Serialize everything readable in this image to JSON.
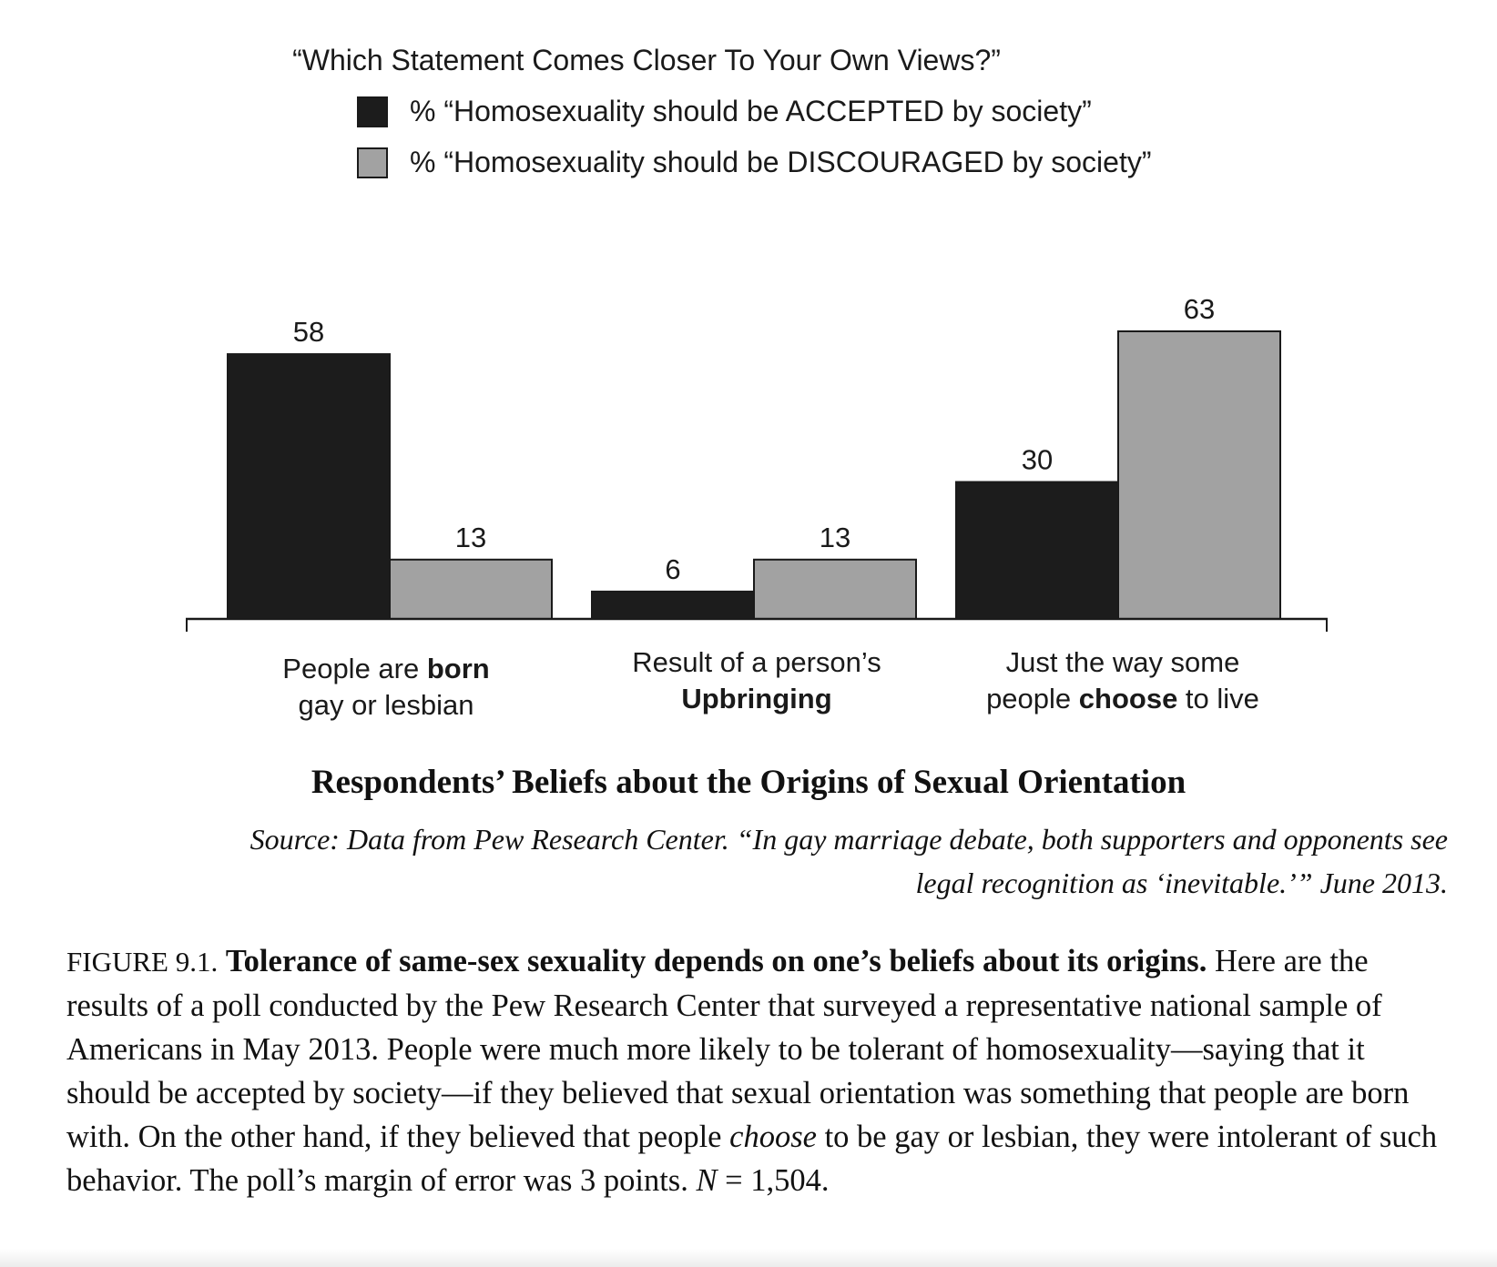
{
  "chart_data": {
    "type": "bar",
    "title": "“Which Statement Comes Closer To Your Own Views?”",
    "categories": [
      {
        "prefix": "People are ",
        "bold": "born",
        "suffix": " gay or lesbian"
      },
      {
        "prefix": "Result of a person’s ",
        "bold": "Upbringing",
        "suffix": ""
      },
      {
        "prefix": "Just the way some people ",
        "bold": "choose",
        "suffix": " to live"
      }
    ],
    "series": [
      {
        "name": "% “Homosexuality should be ACCEPTED by society”",
        "values": [
          58,
          6,
          30
        ],
        "color": "#1c1c1c"
      },
      {
        "name": "% “Homosexuality should be DISCOURAGED by society”",
        "values": [
          13,
          13,
          63
        ],
        "color": "#a2a2a2"
      }
    ],
    "ylim": [
      0,
      63
    ],
    "grid": false,
    "legend_position": "top",
    "data_labels": true
  },
  "figure": {
    "title": "Respondents’ Beliefs about the Origins of Sexual Orientation",
    "source_line1": "Source: Data from Pew Research Center. “In gay marriage debate, both supporters and opponents see",
    "source_line2": "legal recognition as ‘inevitable.’” June 2013.",
    "caption_label": "FIGURE 9.1.",
    "caption_lead": "Tolerance of same-sex sexuality depends on one’s beliefs about its origins.",
    "caption_body_1": "Here are the results of a poll conducted by the Pew Research Center that surveyed a representative national sample of Americans in May 2013. People were much more likely to be tolerant of homosexuality—saying that it should be accepted by society—if they believed that sexual orientation was something that people are born with. On the other hand, if they believed that people",
    "caption_emphasis": "choose",
    "caption_body_2": "to be gay or lesbian, they were intolerant of such behavior. The poll’s margin of error was 3 points.",
    "caption_n_symbol": "N",
    "caption_n_value": "= 1,504."
  }
}
